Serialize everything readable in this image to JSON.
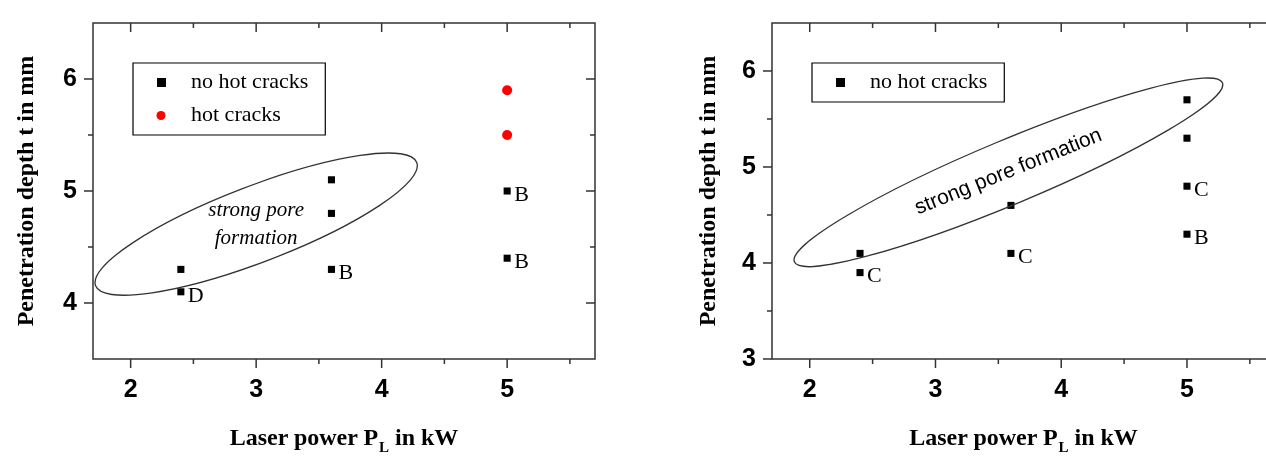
{
  "chart_data": [
    {
      "type": "scatter",
      "xlabel": "Laser power P$_{L}$ in kW",
      "ylabel": "Penetration depth t in mm",
      "xlim": [
        1.7,
        5.7
      ],
      "xticks": [
        2,
        {
          "value": 2.5,
          "label": null
        },
        3,
        {
          "value": 3.5,
          "label": null
        },
        4,
        {
          "value": 4.5,
          "label": null
        },
        5,
        {
          "value": 5.5,
          "label": null
        }
      ],
      "ylim": [
        3.5,
        6.5
      ],
      "yticks": [
        4,
        {
          "value": 4.5,
          "label": null
        },
        5,
        {
          "value": 5.5,
          "label": null
        },
        6
      ],
      "legend": "top left",
      "series": [
        {
          "name": "no hot cracks",
          "color": "#000000",
          "marker": "square",
          "x": [
            2.4,
            2.4,
            3.6,
            3.6,
            3.6,
            5,
            5
          ],
          "values": [
            4.3,
            4.1,
            5.1,
            4.8,
            4.3,
            5.0,
            4.4
          ]
        },
        {
          "name": "hot cracks",
          "color": "#ff0000",
          "marker": "circle",
          "x": [
            5,
            5
          ],
          "values": [
            5.9,
            5.5
          ]
        }
      ],
      "annotations": [
        "strong pore formation",
        {
          "text": "D",
          "x": 2.4,
          "y": 4.1
        },
        {
          "text": "B",
          "x": 3.6,
          "y": 4.3
        },
        {
          "text": "B",
          "x": 5,
          "y": 5.0
        },
        {
          "text": "B",
          "x": 5,
          "y": 4.4
        }
      ]
    },
    {
      "type": "scatter",
      "xlabel": "Laser power P$_{L}$ in kW",
      "ylabel": "Penetration depth t in mm",
      "xlim": [
        1.7,
        5.7
      ],
      "xticks": [
        2,
        {
          "value": 2.5,
          "label": null
        },
        3,
        {
          "value": 3.5,
          "label": null
        },
        4,
        {
          "value": 4.5,
          "label": null
        },
        5,
        {
          "value": 5.5,
          "label": null
        }
      ],
      "ylim": [
        3,
        6.5
      ],
      "yticks": [
        3,
        {
          "value": 3.5,
          "label": null
        },
        4,
        {
          "value": 4.5,
          "label": null
        },
        5,
        {
          "value": 5.5,
          "label": null
        },
        6
      ],
      "legend": "top left",
      "series": [
        {
          "name": "no hot cracks",
          "color": "#000000",
          "marker": "square",
          "x": [
            2.4,
            2.4,
            3.6,
            3.6,
            5,
            5,
            5,
            5
          ],
          "values": [
            4.1,
            3.9,
            4.6,
            4.1,
            5.7,
            5.3,
            4.8,
            4.3
          ]
        }
      ],
      "annotations": [
        "strong pore formation",
        {
          "text": "C",
          "x": 2.4,
          "y": 3.9
        },
        {
          "text": "C",
          "x": 3.6,
          "y": 4.1
        },
        {
          "text": "C",
          "x": 5,
          "y": 4.8
        },
        {
          "text": "B",
          "x": 5,
          "y": 4.3
        }
      ]
    }
  ]
}
